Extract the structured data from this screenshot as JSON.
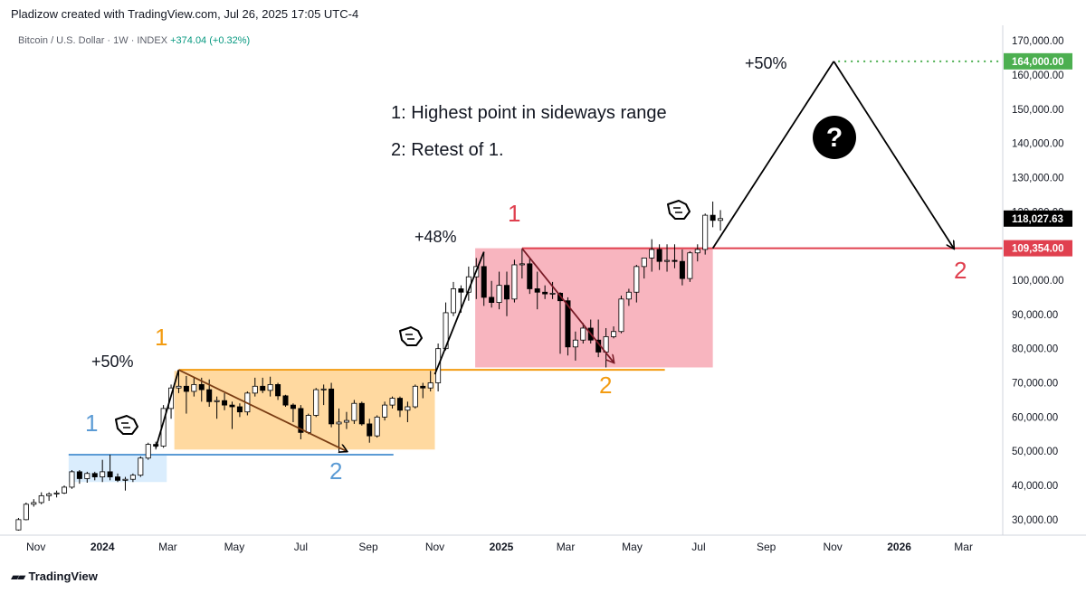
{
  "header": {
    "byline": "Pladizow created with TradingView.com, Jul 26, 2025 17:05 UTC-4",
    "symbol": "Bitcoin / U.S. Dollar · 1W · INDEX",
    "change": "+374.04 (+0.32%)"
  },
  "footer": {
    "brand": "TradingView"
  },
  "colors": {
    "up": "#ffffff",
    "down": "#000000",
    "blue_zone": "#bbdefb",
    "orange_zone": "#ffcc80",
    "red_zone": "#f7a8b4",
    "blue": "#5b9bd5",
    "orange": "#f39c12",
    "red": "#e0404f",
    "green": "#4caf50"
  },
  "price_scale": {
    "ticks": [
      "170,000.00",
      "160,000.00",
      "150,000.00",
      "140,000.00",
      "130,000.00",
      "120,000.00",
      "110,000.00",
      "100,000.00",
      "90,000.00",
      "80,000.00",
      "70,000.00",
      "60,000.00",
      "50,000.00",
      "40,000.00",
      "30,000.00"
    ],
    "labels": [
      {
        "text": "164,000.00",
        "value": 164000,
        "color": "#4caf50"
      },
      {
        "text": "118,027.63",
        "value": 118027.63,
        "color": "#000000"
      },
      {
        "text": "109,354.00",
        "value": 109354,
        "color": "#e0404f"
      }
    ]
  },
  "time_scale": [
    "Nov",
    "2024",
    "Mar",
    "May",
    "Jul",
    "Sep",
    "Nov",
    "2025",
    "Mar",
    "May",
    "Jul",
    "Sep",
    "Nov",
    "2026",
    "Mar"
  ],
  "annotations": {
    "note1": "1: Highest point in sideways range",
    "note2": "2: Retest of 1.",
    "pct_first": "+50%",
    "pct_second": "+48%",
    "pct_third": "+50%",
    "blue_1": "1",
    "blue_2": "2",
    "orange_1": "1",
    "orange_2": "2",
    "red_1": "1",
    "red_2": "2",
    "question": "?"
  },
  "chart_data": {
    "type": "candlestick",
    "title": "Bitcoin / U.S. Dollar · 1W · INDEX",
    "ylim": [
      26000,
      174000
    ],
    "x_range": [
      "2023-10-09",
      "2026-04-06"
    ],
    "candles": [
      {
        "date": "2023-10-16",
        "open": 27000,
        "high": 30500,
        "low": 26800,
        "close": 30000
      },
      {
        "date": "2023-10-23",
        "open": 30000,
        "high": 35000,
        "low": 29800,
        "close": 34500
      },
      {
        "date": "2023-10-30",
        "open": 34500,
        "high": 36000,
        "low": 33800,
        "close": 35000
      },
      {
        "date": "2023-11-06",
        "open": 35000,
        "high": 38000,
        "low": 34500,
        "close": 37000
      },
      {
        "date": "2023-11-13",
        "open": 37000,
        "high": 38000,
        "low": 35500,
        "close": 37500
      },
      {
        "date": "2023-11-20",
        "open": 37500,
        "high": 38500,
        "low": 36500,
        "close": 37800
      },
      {
        "date": "2023-11-27",
        "open": 37800,
        "high": 40000,
        "low": 37500,
        "close": 39500
      },
      {
        "date": "2023-12-04",
        "open": 39500,
        "high": 44500,
        "low": 39000,
        "close": 44000
      },
      {
        "date": "2023-12-11",
        "open": 44000,
        "high": 44500,
        "low": 40500,
        "close": 42000
      },
      {
        "date": "2023-12-18",
        "open": 42000,
        "high": 44000,
        "low": 40800,
        "close": 43500
      },
      {
        "date": "2023-12-25",
        "open": 43500,
        "high": 44000,
        "low": 41500,
        "close": 42500
      },
      {
        "date": "2024-01-01",
        "open": 42500,
        "high": 47500,
        "low": 41000,
        "close": 44000
      },
      {
        "date": "2024-01-08",
        "open": 44000,
        "high": 49000,
        "low": 41500,
        "close": 42500
      },
      {
        "date": "2024-01-15",
        "open": 42500,
        "high": 43500,
        "low": 41000,
        "close": 41500
      },
      {
        "date": "2024-01-22",
        "open": 41500,
        "high": 42500,
        "low": 38500,
        "close": 41800
      },
      {
        "date": "2024-01-29",
        "open": 41800,
        "high": 43500,
        "low": 41000,
        "close": 43000
      },
      {
        "date": "2024-02-05",
        "open": 43000,
        "high": 48500,
        "low": 42500,
        "close": 48000
      },
      {
        "date": "2024-02-12",
        "open": 48000,
        "high": 52500,
        "low": 47500,
        "close": 52000
      },
      {
        "date": "2024-02-19",
        "open": 52000,
        "high": 52800,
        "low": 50500,
        "close": 51500
      },
      {
        "date": "2024-02-26",
        "open": 51500,
        "high": 63500,
        "low": 51000,
        "close": 62500
      },
      {
        "date": "2024-03-04",
        "open": 62500,
        "high": 69500,
        "low": 59500,
        "close": 68500
      },
      {
        "date": "2024-03-11",
        "open": 68500,
        "high": 73800,
        "low": 67000,
        "close": 69000
      },
      {
        "date": "2024-03-18",
        "open": 69000,
        "high": 72000,
        "low": 61000,
        "close": 67500
      },
      {
        "date": "2024-03-25",
        "open": 67500,
        "high": 71500,
        "low": 66000,
        "close": 69500
      },
      {
        "date": "2024-04-01",
        "open": 69500,
        "high": 71500,
        "low": 64500,
        "close": 68000
      },
      {
        "date": "2024-04-08",
        "open": 68000,
        "high": 71000,
        "low": 63000,
        "close": 64500
      },
      {
        "date": "2024-04-15",
        "open": 64500,
        "high": 66000,
        "low": 59500,
        "close": 64800
      },
      {
        "date": "2024-04-22",
        "open": 64800,
        "high": 67000,
        "low": 62000,
        "close": 63500
      },
      {
        "date": "2024-04-29",
        "open": 63500,
        "high": 64500,
        "low": 56500,
        "close": 63000
      },
      {
        "date": "2024-05-06",
        "open": 63000,
        "high": 64000,
        "low": 60000,
        "close": 61500
      },
      {
        "date": "2024-05-13",
        "open": 61500,
        "high": 67500,
        "low": 60500,
        "close": 67000
      },
      {
        "date": "2024-05-20",
        "open": 67000,
        "high": 71500,
        "low": 66000,
        "close": 69000
      },
      {
        "date": "2024-05-27",
        "open": 69000,
        "high": 71500,
        "low": 67000,
        "close": 67800
      },
      {
        "date": "2024-06-03",
        "open": 67800,
        "high": 71800,
        "low": 66000,
        "close": 69500
      },
      {
        "date": "2024-06-10",
        "open": 69500,
        "high": 70000,
        "low": 65000,
        "close": 66200
      },
      {
        "date": "2024-06-17",
        "open": 66200,
        "high": 66500,
        "low": 63000,
        "close": 63500
      },
      {
        "date": "2024-06-24",
        "open": 63500,
        "high": 64000,
        "low": 58500,
        "close": 62500
      },
      {
        "date": "2024-07-01",
        "open": 62500,
        "high": 63500,
        "low": 53500,
        "close": 55500
      },
      {
        "date": "2024-07-08",
        "open": 55500,
        "high": 61000,
        "low": 55000,
        "close": 60500
      },
      {
        "date": "2024-07-15",
        "open": 60500,
        "high": 68500,
        "low": 60000,
        "close": 68000
      },
      {
        "date": "2024-07-22",
        "open": 68000,
        "high": 69500,
        "low": 63500,
        "close": 68200
      },
      {
        "date": "2024-07-29",
        "open": 68200,
        "high": 70000,
        "low": 57000,
        "close": 58000
      },
      {
        "date": "2024-08-05",
        "open": 58000,
        "high": 62500,
        "low": 49500,
        "close": 58500
      },
      {
        "date": "2024-08-12",
        "open": 58500,
        "high": 61500,
        "low": 56500,
        "close": 59000
      },
      {
        "date": "2024-08-19",
        "open": 59000,
        "high": 65000,
        "low": 58000,
        "close": 64000
      },
      {
        "date": "2024-08-26",
        "open": 64000,
        "high": 64500,
        "low": 57500,
        "close": 58000
      },
      {
        "date": "2024-09-02",
        "open": 58000,
        "high": 59500,
        "low": 52500,
        "close": 54500
      },
      {
        "date": "2024-09-09",
        "open": 54500,
        "high": 60500,
        "low": 54000,
        "close": 60000
      },
      {
        "date": "2024-09-16",
        "open": 60000,
        "high": 64500,
        "low": 59000,
        "close": 63500
      },
      {
        "date": "2024-09-23",
        "open": 63500,
        "high": 66000,
        "low": 62500,
        "close": 65500
      },
      {
        "date": "2024-09-30",
        "open": 65500,
        "high": 66000,
        "low": 60000,
        "close": 62000
      },
      {
        "date": "2024-10-07",
        "open": 62000,
        "high": 64500,
        "low": 58500,
        "close": 63000
      },
      {
        "date": "2024-10-14",
        "open": 63000,
        "high": 69500,
        "low": 62500,
        "close": 69000
      },
      {
        "date": "2024-10-21",
        "open": 69000,
        "high": 70000,
        "low": 65500,
        "close": 68500
      },
      {
        "date": "2024-10-28",
        "open": 68500,
        "high": 73500,
        "low": 67500,
        "close": 70000
      },
      {
        "date": "2024-11-04",
        "open": 70000,
        "high": 81500,
        "low": 67500,
        "close": 80000
      },
      {
        "date": "2024-11-11",
        "open": 80000,
        "high": 93500,
        "low": 79500,
        "close": 90500
      },
      {
        "date": "2024-11-18",
        "open": 90500,
        "high": 99500,
        "low": 89500,
        "close": 97500
      },
      {
        "date": "2024-11-25",
        "open": 97500,
        "high": 98500,
        "low": 90500,
        "close": 96500
      },
      {
        "date": "2024-12-02",
        "open": 96500,
        "high": 104000,
        "low": 94000,
        "close": 101000
      },
      {
        "date": "2024-12-09",
        "open": 101000,
        "high": 106500,
        "low": 94500,
        "close": 104000
      },
      {
        "date": "2024-12-16",
        "open": 104000,
        "high": 108300,
        "low": 92500,
        "close": 95000
      },
      {
        "date": "2024-12-23",
        "open": 95000,
        "high": 99800,
        "low": 92000,
        "close": 93500
      },
      {
        "date": "2024-12-30",
        "open": 93500,
        "high": 102500,
        "low": 91500,
        "close": 98500
      },
      {
        "date": "2025-01-06",
        "open": 98500,
        "high": 102500,
        "low": 89500,
        "close": 94500
      },
      {
        "date": "2025-01-13",
        "open": 94500,
        "high": 106000,
        "low": 93500,
        "close": 104500
      },
      {
        "date": "2025-01-20",
        "open": 104500,
        "high": 109300,
        "low": 100500,
        "close": 104800
      },
      {
        "date": "2025-01-27",
        "open": 104800,
        "high": 106500,
        "low": 96000,
        "close": 97500
      },
      {
        "date": "2025-02-03",
        "open": 97500,
        "high": 102500,
        "low": 91500,
        "close": 96500
      },
      {
        "date": "2025-02-10",
        "open": 96500,
        "high": 98500,
        "low": 94500,
        "close": 96000
      },
      {
        "date": "2025-02-17",
        "open": 96000,
        "high": 99500,
        "low": 94500,
        "close": 96200
      },
      {
        "date": "2025-02-24",
        "open": 96200,
        "high": 96500,
        "low": 78500,
        "close": 94000
      },
      {
        "date": "2025-03-03",
        "open": 94000,
        "high": 95000,
        "low": 78000,
        "close": 80500
      },
      {
        "date": "2025-03-10",
        "open": 80500,
        "high": 85000,
        "low": 76500,
        "close": 82500
      },
      {
        "date": "2025-03-17",
        "open": 82500,
        "high": 87500,
        "low": 81500,
        "close": 86000
      },
      {
        "date": "2025-03-24",
        "open": 86000,
        "high": 88500,
        "low": 81500,
        "close": 82500
      },
      {
        "date": "2025-03-31",
        "open": 82500,
        "high": 88500,
        "low": 77500,
        "close": 79000
      },
      {
        "date": "2025-04-07",
        "open": 79000,
        "high": 86000,
        "low": 74500,
        "close": 83500
      },
      {
        "date": "2025-04-14",
        "open": 83500,
        "high": 86500,
        "low": 83000,
        "close": 85000
      },
      {
        "date": "2025-04-21",
        "open": 85000,
        "high": 95500,
        "low": 84500,
        "close": 94500
      },
      {
        "date": "2025-04-28",
        "open": 94500,
        "high": 97500,
        "low": 92500,
        "close": 96500
      },
      {
        "date": "2025-05-05",
        "open": 96500,
        "high": 104500,
        "low": 93500,
        "close": 104000
      },
      {
        "date": "2025-05-12",
        "open": 104000,
        "high": 105500,
        "low": 100500,
        "close": 106500
      },
      {
        "date": "2025-05-19",
        "open": 106500,
        "high": 112000,
        "low": 102500,
        "close": 109000
      },
      {
        "date": "2025-05-26",
        "open": 109000,
        "high": 110500,
        "low": 103000,
        "close": 105500
      },
      {
        "date": "2025-06-02",
        "open": 105500,
        "high": 110500,
        "low": 102500,
        "close": 105800
      },
      {
        "date": "2025-06-09",
        "open": 105800,
        "high": 110500,
        "low": 103500,
        "close": 105500
      },
      {
        "date": "2025-06-16",
        "open": 105500,
        "high": 109000,
        "low": 98500,
        "close": 100500
      },
      {
        "date": "2025-06-23",
        "open": 100500,
        "high": 108500,
        "low": 99500,
        "close": 108000
      },
      {
        "date": "2025-06-30",
        "open": 108000,
        "high": 110500,
        "low": 105500,
        "close": 109000
      },
      {
        "date": "2025-07-07",
        "open": 109000,
        "high": 119500,
        "low": 107500,
        "close": 119000
      },
      {
        "date": "2025-07-14",
        "open": 119000,
        "high": 123000,
        "low": 115500,
        "close": 117500
      },
      {
        "date": "2025-07-21",
        "open": 117500,
        "high": 120500,
        "low": 114500,
        "close": 118027.63
      }
    ],
    "zones": [
      {
        "color": "blue",
        "x0": "2023-12-01",
        "x1": "2024-02-29",
        "y0": 41000,
        "y1": 49000
      },
      {
        "color": "orange",
        "x0": "2024-03-07",
        "x1": "2024-11-01",
        "y0": 50500,
        "y1": 73500
      },
      {
        "color": "red",
        "x0": "2024-12-08",
        "x1": "2025-07-14",
        "y0": 74500,
        "y1": 109354
      }
    ],
    "levels": [
      {
        "color": "blue",
        "x0": "2023-12-01",
        "x1": "2024-09-24",
        "y": 49000
      },
      {
        "color": "orange",
        "x0": "2024-03-11",
        "x1": "2025-05-31",
        "y": 73800
      },
      {
        "color": "red",
        "x0": "2025-01-20",
        "x1": "2026-04-06",
        "y": 109354
      },
      {
        "color": "green",
        "x0": "2025-11-06",
        "x1": "2026-04-06",
        "y": 164000,
        "style": "dotted"
      }
    ],
    "projection": [
      {
        "date": "2025-07-14",
        "value": 109354
      },
      {
        "date": "2025-11-02",
        "value": 164000
      },
      {
        "date": "2026-02-20",
        "value": 109354
      }
    ]
  }
}
